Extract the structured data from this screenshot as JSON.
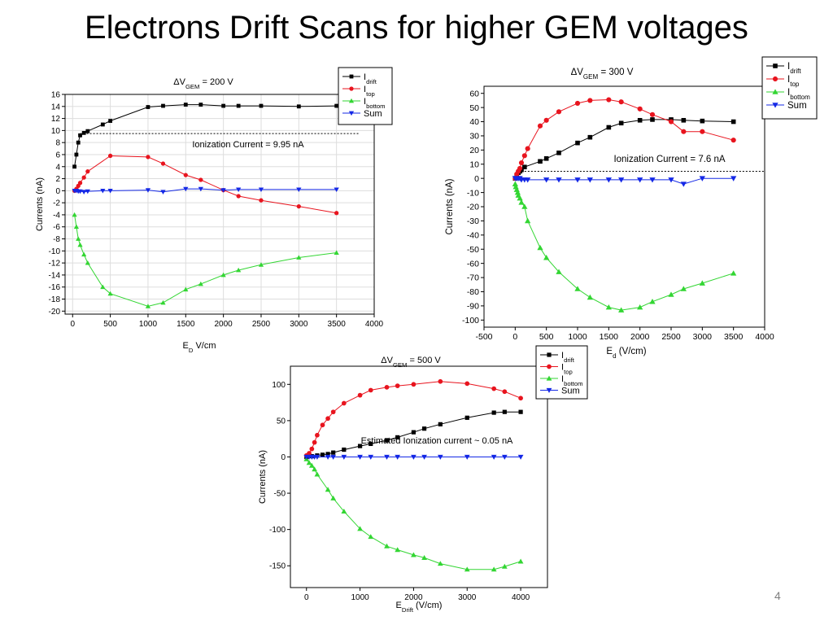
{
  "slide": {
    "title": "Electrons Drift Scans for higher GEM voltages",
    "page_number": "4"
  },
  "chart_data": [
    {
      "type": "scatter",
      "title_prefix": "ΔV",
      "title_sub": "GEM",
      "title_suffix": " = 200 V",
      "xlabel": "E",
      "xlabel_sub": "D",
      "xlabel_suffix": " V/cm",
      "ylabel": "Currents (nA)",
      "xlim": [
        -100,
        4000
      ],
      "ylim": [
        -20.5,
        16
      ],
      "xticks": [
        0,
        500,
        1000,
        1500,
        2000,
        2500,
        3000,
        3500,
        4000
      ],
      "yticks": [
        -20,
        -18,
        -16,
        -14,
        -12,
        -10,
        -8,
        -6,
        -4,
        -2,
        0,
        2,
        4,
        6,
        8,
        10,
        12,
        14,
        16
      ],
      "grid": true,
      "legend_position": "top-right",
      "annotation": {
        "text": "Ionization Current = 9.95 nA",
        "y": 9.5,
        "x_start": 100,
        "x_end": 3800
      },
      "series": [
        {
          "name": "I",
          "sub": "drift",
          "color": "#000000",
          "marker": "square",
          "x": [
            25,
            50,
            75,
            100,
            150,
            200,
            400,
            500,
            1000,
            1200,
            1500,
            1700,
            2000,
            2200,
            2500,
            3000,
            3500
          ],
          "y": [
            4.0,
            6.0,
            8.0,
            9.2,
            9.6,
            9.9,
            11.0,
            11.6,
            13.9,
            14.1,
            14.3,
            14.3,
            14.1,
            14.1,
            14.1,
            14.0,
            14.1
          ]
        },
        {
          "name": "I",
          "sub": "top",
          "color": "#e8141e",
          "marker": "circle",
          "x": [
            25,
            50,
            75,
            100,
            150,
            200,
            500,
            1000,
            1200,
            1500,
            1700,
            2000,
            2200,
            2500,
            3000,
            3500
          ],
          "y": [
            0.0,
            0.3,
            0.8,
            1.3,
            2.2,
            3.2,
            5.8,
            5.6,
            4.5,
            2.6,
            1.8,
            0.1,
            -0.9,
            -1.6,
            -2.6,
            -3.7
          ]
        },
        {
          "name": "I",
          "sub": "bottom",
          "color": "#33d633",
          "marker": "triangle-up",
          "x": [
            25,
            50,
            75,
            100,
            150,
            200,
            400,
            500,
            1000,
            1200,
            1500,
            1700,
            2000,
            2200,
            2500,
            3000,
            3500
          ],
          "y": [
            -4.0,
            -6.0,
            -8.0,
            -9.0,
            -10.6,
            -12.0,
            -16.0,
            -17.1,
            -19.2,
            -18.6,
            -16.4,
            -15.5,
            -14.0,
            -13.2,
            -12.3,
            -11.1,
            -10.3
          ]
        },
        {
          "name": "Sum",
          "sub": "",
          "color": "#1428e6",
          "marker": "triangle-down",
          "x": [
            25,
            50,
            75,
            100,
            150,
            200,
            400,
            500,
            1000,
            1200,
            1500,
            1700,
            2000,
            2200,
            2500,
            3000,
            3500
          ],
          "y": [
            0.0,
            0.0,
            -0.1,
            -0.1,
            -0.2,
            -0.1,
            0.0,
            0.0,
            0.1,
            -0.2,
            0.3,
            0.3,
            0.1,
            0.2,
            0.2,
            0.2,
            0.2
          ]
        }
      ]
    },
    {
      "type": "scatter",
      "title_prefix": "ΔV",
      "title_sub": "GEM",
      "title_suffix": " = 300 V",
      "xlabel": "E",
      "xlabel_sub": "d",
      "xlabel_suffix": " (V/cm)",
      "ylabel": "Currents (nA)",
      "xlim": [
        -500,
        4000
      ],
      "ylim": [
        -105,
        65
      ],
      "xticks": [
        -500,
        0,
        500,
        1000,
        1500,
        2000,
        2500,
        3000,
        3500,
        4000
      ],
      "yticks": [
        -100,
        -90,
        -80,
        -70,
        -60,
        -50,
        -40,
        -30,
        -20,
        -10,
        0,
        10,
        20,
        30,
        40,
        50,
        60
      ],
      "grid": false,
      "legend_position": "top-right",
      "annotation": {
        "text": "Ionization Current = 7.6 nA",
        "y": 5,
        "x_start": 150,
        "x_end": 4000
      },
      "series": [
        {
          "name": "I",
          "sub": "drift",
          "color": "#000000",
          "marker": "square",
          "x": [
            0,
            25,
            50,
            75,
            100,
            150,
            400,
            500,
            700,
            1000,
            1200,
            1500,
            1700,
            2000,
            2200,
            2500,
            2700,
            3000,
            3500
          ],
          "y": [
            0,
            2,
            4,
            5,
            6,
            8,
            12,
            14,
            18,
            25,
            29,
            36,
            39,
            41,
            41.5,
            41.5,
            41,
            40.5,
            40
          ]
        },
        {
          "name": "I",
          "sub": "top",
          "color": "#e8141e",
          "marker": "circle",
          "x": [
            0,
            25,
            50,
            75,
            100,
            150,
            200,
            400,
            500,
            700,
            1000,
            1200,
            1500,
            1700,
            2000,
            2200,
            2500,
            2700,
            3000,
            3500
          ],
          "y": [
            0,
            3,
            5,
            7,
            11,
            16,
            21,
            37,
            41,
            47,
            53,
            55,
            55.5,
            54,
            49,
            45,
            40,
            33,
            33,
            27
          ]
        },
        {
          "name": "I",
          "sub": "bottom",
          "color": "#33d633",
          "marker": "triangle-up",
          "x": [
            0,
            10,
            25,
            40,
            50,
            75,
            100,
            150,
            200,
            400,
            500,
            700,
            1000,
            1200,
            1500,
            1700,
            2000,
            2200,
            2500,
            2700,
            3000,
            3500
          ],
          "y": [
            -4,
            -6,
            -8,
            -10,
            -12,
            -14,
            -17,
            -20,
            -30,
            -49,
            -56,
            -66,
            -78,
            -84,
            -91,
            -93,
            -91,
            -87,
            -82,
            -78,
            -74,
            -67
          ]
        },
        {
          "name": "Sum",
          "sub": "",
          "color": "#1428e6",
          "marker": "triangle-down",
          "x": [
            0,
            25,
            50,
            75,
            100,
            150,
            200,
            500,
            700,
            1000,
            1200,
            1500,
            1700,
            2000,
            2200,
            2500,
            2700,
            3000,
            3500
          ],
          "y": [
            0,
            0,
            0,
            0,
            -1,
            -1,
            -1,
            -1,
            -1,
            -1,
            -1,
            -1,
            -1,
            -1,
            -1,
            -1,
            -4,
            0,
            0
          ]
        }
      ]
    },
    {
      "type": "scatter",
      "title_prefix": "ΔV",
      "title_sub": "GEM",
      "title_suffix": " = 500 V",
      "xlabel": "E",
      "xlabel_sub": "Drift",
      "xlabel_suffix": " (V/cm)",
      "ylabel": "Currents (nA)",
      "xlim": [
        -300,
        4500
      ],
      "ylim": [
        -180,
        125
      ],
      "xticks": [
        0,
        1000,
        2000,
        3000,
        4000
      ],
      "yticks": [
        -150,
        -100,
        -50,
        0,
        50,
        100
      ],
      "grid": false,
      "legend_position": "top-right",
      "annotation": {
        "text": "Estimated Ionization current ~ 0.05 nA",
        "y": null,
        "x_start": null,
        "x_end": null
      },
      "series": [
        {
          "name": "I",
          "sub": "drift",
          "color": "#000000",
          "marker": "square",
          "x": [
            0,
            100,
            200,
            300,
            400,
            500,
            700,
            1000,
            1200,
            1500,
            1700,
            2000,
            2200,
            2500,
            3000,
            3500,
            3700,
            4000
          ],
          "y": [
            0,
            1,
            2,
            3,
            4,
            6,
            10,
            15,
            18,
            23,
            27,
            34,
            39,
            45,
            54,
            61,
            62,
            62
          ]
        },
        {
          "name": "I",
          "sub": "top",
          "color": "#e8141e",
          "marker": "circle",
          "x": [
            0,
            50,
            100,
            150,
            200,
            300,
            400,
            500,
            700,
            1000,
            1200,
            1500,
            1700,
            2000,
            2500,
            3000,
            3500,
            3700,
            4000
          ],
          "y": [
            2,
            5,
            11,
            20,
            30,
            44,
            53,
            62,
            74,
            85,
            92,
            96,
            98,
            100,
            104,
            101,
            94,
            90,
            81
          ]
        },
        {
          "name": "I",
          "sub": "bottom",
          "color": "#33d633",
          "marker": "triangle-up",
          "x": [
            0,
            50,
            100,
            150,
            200,
            400,
            500,
            700,
            1000,
            1200,
            1500,
            1700,
            2000,
            2200,
            2500,
            3000,
            3500,
            3700,
            4000
          ],
          "y": [
            -3,
            -8,
            -12,
            -17,
            -24,
            -45,
            -57,
            -75,
            -99,
            -110,
            -123,
            -128,
            -135,
            -139,
            -147,
            -155,
            -155,
            -151,
            -144
          ]
        },
        {
          "name": "Sum",
          "sub": "",
          "color": "#1428e6",
          "marker": "triangle-down",
          "x": [
            0,
            50,
            100,
            150,
            200,
            400,
            500,
            700,
            1000,
            1200,
            1500,
            1700,
            2000,
            2200,
            2500,
            3000,
            3500,
            3700,
            4000
          ],
          "y": [
            0,
            0,
            0,
            0,
            0,
            0,
            0,
            0,
            0,
            0,
            0,
            0,
            0,
            0,
            0,
            0,
            0,
            0,
            0
          ]
        }
      ]
    }
  ]
}
